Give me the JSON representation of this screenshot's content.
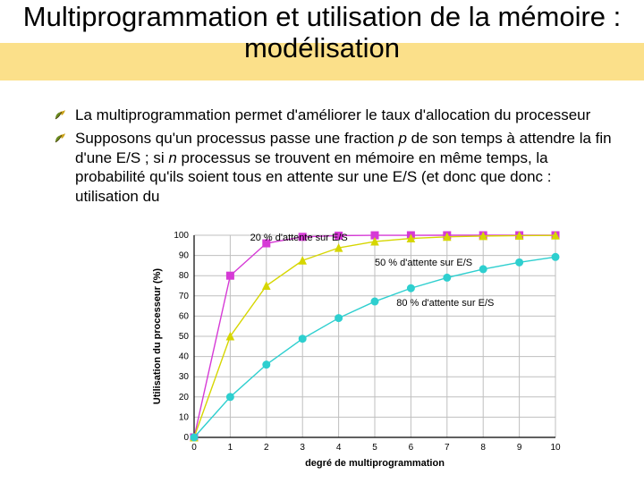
{
  "title": "Multiprogrammation et utilisation de la mémoire : modélisation",
  "bullets": [
    "La multiprogrammation permet d'améliorer le taux d'allocation du processeur",
    "Supposons qu'un processus passe une fraction <i>p</i> de son temps à attendre la fin d'une E/S ; si <i>n</i> processus se trouvent en mémoire en même temps, la probabilité qu'ils soient tous en attente sur une E/S (et donc que                                                                                                                    donc : utilisation du"
  ],
  "chart": {
    "type": "line",
    "x_label": "degré de multiprogrammation",
    "y_label": "Utilisation du processeur (%)",
    "xlim": [
      0,
      10
    ],
    "ylim": [
      0,
      100
    ],
    "xtick_step": 1,
    "ytick_step": 10,
    "background_color": "#ffffff",
    "grid_color": "#bfbfbf",
    "axis_color": "#000000",
    "label_fontsize": 11,
    "marker_size": 4,
    "line_width": 1.4,
    "series": [
      {
        "name": "20 % d'attente sur E/S",
        "color": "#d63ad6",
        "marker": "square",
        "x": [
          0,
          1,
          2,
          3,
          4,
          5,
          6,
          7,
          8,
          9,
          10
        ],
        "y": [
          0,
          80,
          96,
          99.2,
          99.8,
          99.97,
          99.99,
          100,
          100,
          100,
          100
        ],
        "label_pos": {
          "x": 1.55,
          "y": 104
        }
      },
      {
        "name": "50 % d'attente sur E/S",
        "color": "#d6d600",
        "marker": "triangle",
        "x": [
          0,
          1,
          2,
          3,
          4,
          5,
          6,
          7,
          8,
          9,
          10
        ],
        "y": [
          0,
          50,
          75,
          87.5,
          93.75,
          96.88,
          98.44,
          99.22,
          99.61,
          99.8,
          99.9
        ],
        "label_pos": {
          "x": 5.0,
          "y": 85
        }
      },
      {
        "name": "80 % d'attente sur E/S",
        "color": "#2ecfcf",
        "marker": "circle",
        "x": [
          0,
          1,
          2,
          3,
          4,
          5,
          6,
          7,
          8,
          9,
          10
        ],
        "y": [
          0,
          20,
          36,
          48.8,
          59.04,
          67.23,
          73.79,
          79.03,
          83.22,
          86.58,
          89.26
        ],
        "label_pos": {
          "x": 5.6,
          "y": 65
        }
      }
    ]
  }
}
